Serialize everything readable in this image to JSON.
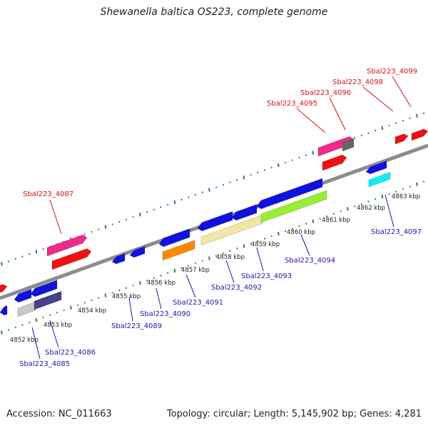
{
  "title": "Shewanella baltica OS223, complete genome",
  "footer": {
    "accession": "Accession: NC_011663",
    "stats": "Topology: circular; Length: 5,145,902 bp; Genes: 4,281"
  },
  "colors": {
    "backbone": "#8c8c8c",
    "ticks": "#2e8b2e",
    "label_forward": "#dd1111",
    "label_reverse": "#1a1aaa"
  },
  "scale_labels": [
    "4852 kbp",
    "4853 kbp",
    "4854 kbp",
    "4855 kbp",
    "4856 kbp",
    "4857 kbp",
    "4858 kbp",
    "4859 kbp",
    "4860 kbp",
    "4861 kbp",
    "4862 kbp",
    "4863 kbp"
  ],
  "gene_labels": [
    {
      "text": "Sbal223_4087",
      "strand": "forward"
    },
    {
      "text": "Sbal223_4095",
      "strand": "forward"
    },
    {
      "text": "Sbal223_4096",
      "strand": "forward"
    },
    {
      "text": "Sbal223_4098",
      "strand": "forward"
    },
    {
      "text": "Sbal223_4099",
      "strand": "forward"
    },
    {
      "text": "Sbal223_4085",
      "strand": "reverse"
    },
    {
      "text": "Sbal223_4086",
      "strand": "reverse"
    },
    {
      "text": "Sbal223_4089",
      "strand": "reverse"
    },
    {
      "text": "Sbal223_4090",
      "strand": "reverse"
    },
    {
      "text": "Sbal223_4091",
      "strand": "reverse"
    },
    {
      "text": "Sbal223_4092",
      "strand": "reverse"
    },
    {
      "text": "Sbal223_4093",
      "strand": "reverse"
    },
    {
      "text": "Sbal223_4094",
      "strand": "reverse"
    },
    {
      "text": "Sbal223_4097",
      "strand": "reverse"
    }
  ]
}
